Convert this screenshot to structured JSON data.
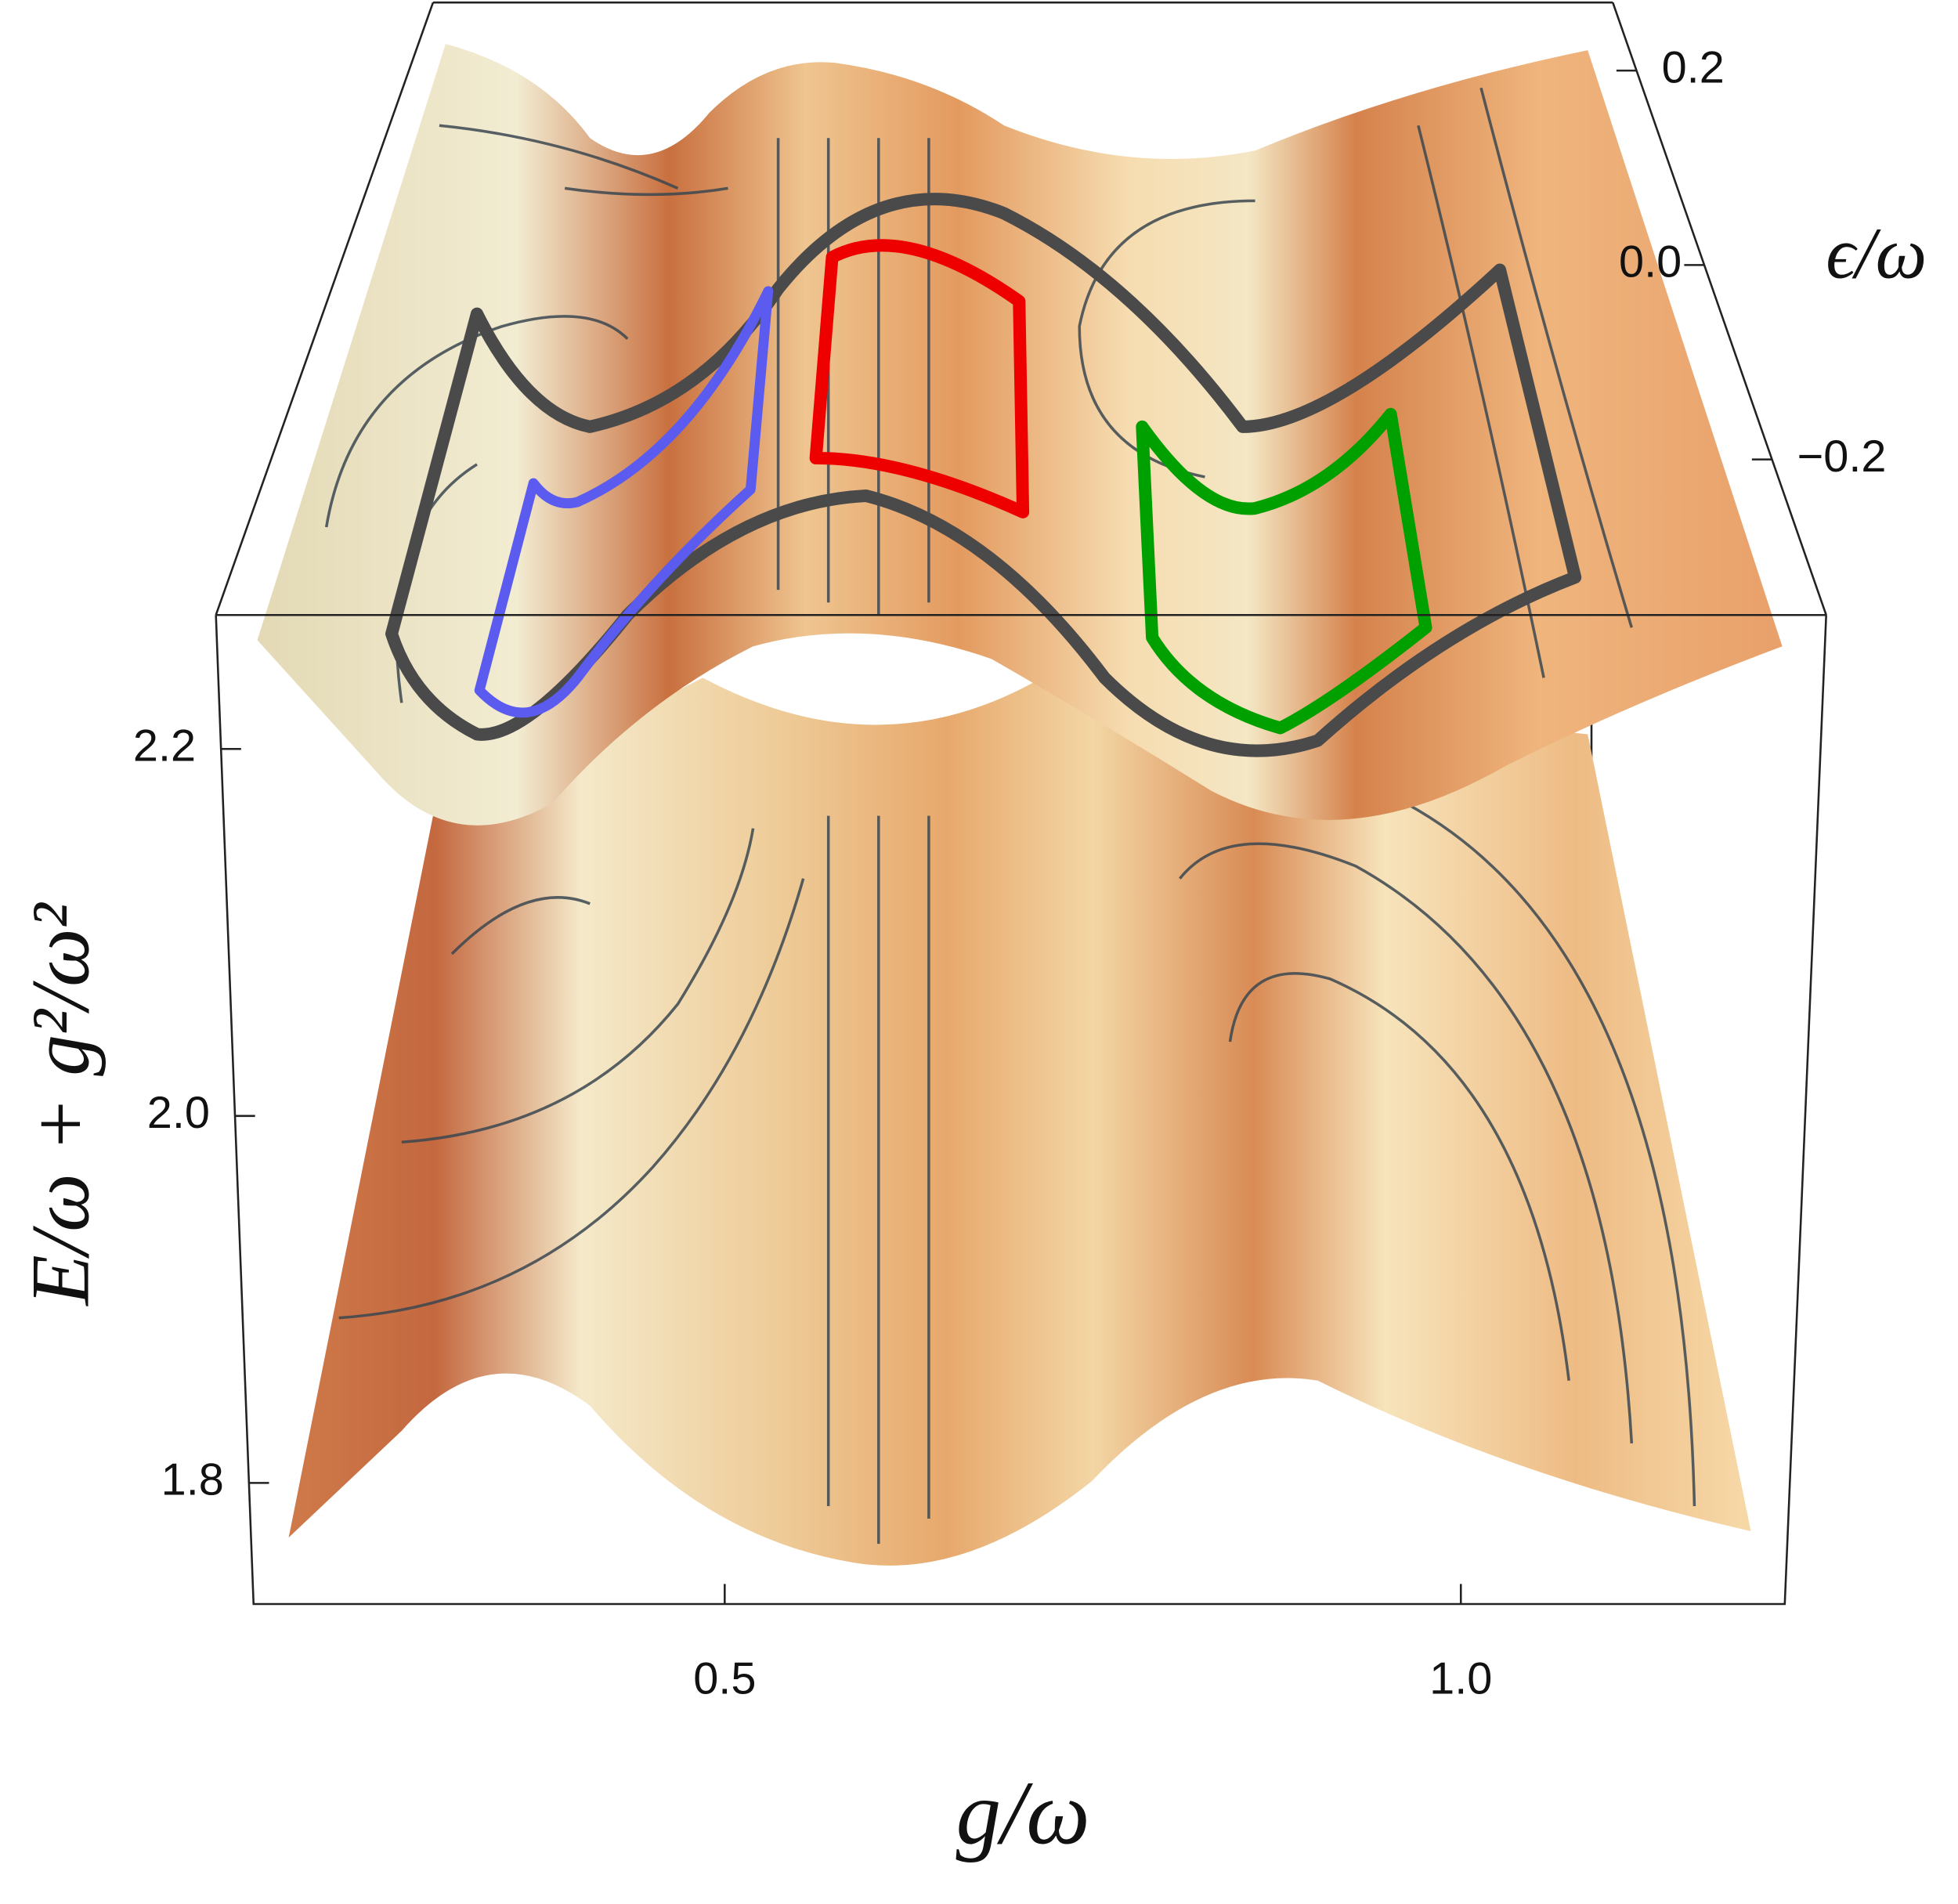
{
  "chart_data": {
    "type": "surface3d",
    "x_label": "g/ω",
    "y_label": "ϵ/ω",
    "z_label": "E/ω + g²/ω²",
    "xlim": [
      0.18,
      1.22
    ],
    "xticks": [
      0.5,
      {
        "value": 1.0,
        "label": "1.0"
      }
    ],
    "ylim": [
      -0.36,
      0.27
    ],
    "yticks": [
      0.2,
      {
        "value": 0.0,
        "label": "0.0"
      },
      {
        "value": -0.2,
        "label": "−0.2"
      }
    ],
    "zlim": [
      1.734,
      2.273
    ],
    "zticks": [
      1.8,
      {
        "value": 2.0,
        "label": "2.0"
      },
      2.2
    ]
  }
}
